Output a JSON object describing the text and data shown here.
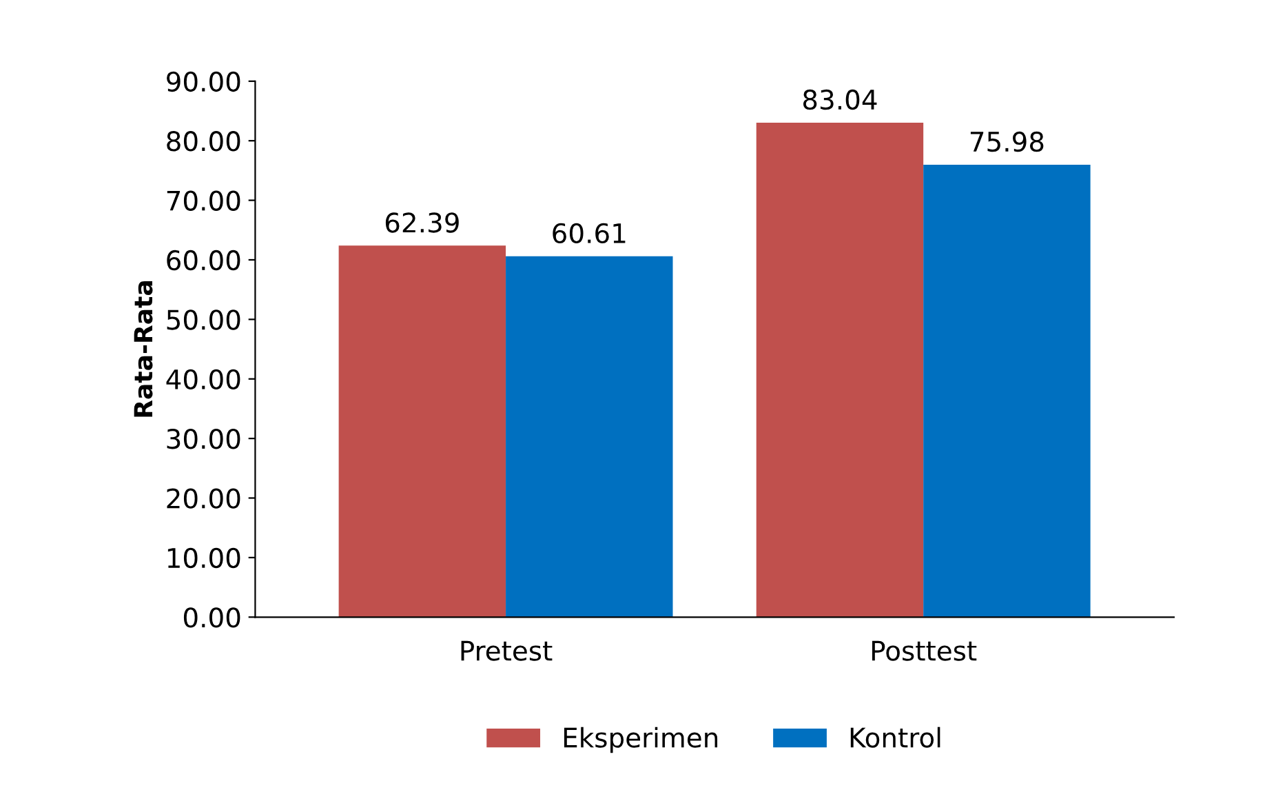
{
  "chart_data": {
    "type": "bar",
    "ylabel": "Rata-Rata",
    "categories": [
      "Pretest",
      "Posttest"
    ],
    "series": [
      {
        "name": "Eksperimen",
        "color": "#c0504d",
        "values": [
          62.39,
          83.04
        ]
      },
      {
        "name": "Kontrol",
        "color": "#0070c0",
        "values": [
          60.61,
          75.98
        ]
      }
    ],
    "ylim": [
      0,
      90
    ],
    "yticks": [
      {
        "value": 0,
        "label": "0.00"
      },
      {
        "value": 10,
        "label": "10.00"
      },
      {
        "value": 20,
        "label": "20.00"
      },
      {
        "value": 30,
        "label": "30.00"
      },
      {
        "value": 40,
        "label": "40.00"
      },
      {
        "value": 50,
        "label": "50.00"
      },
      {
        "value": 60,
        "label": "60.00"
      },
      {
        "value": 70,
        "label": "70.00"
      },
      {
        "value": 80,
        "label": "80.00"
      },
      {
        "value": 90,
        "label": "90.00"
      }
    ],
    "data_labels": true,
    "legend": "bottom",
    "grid": false
  }
}
